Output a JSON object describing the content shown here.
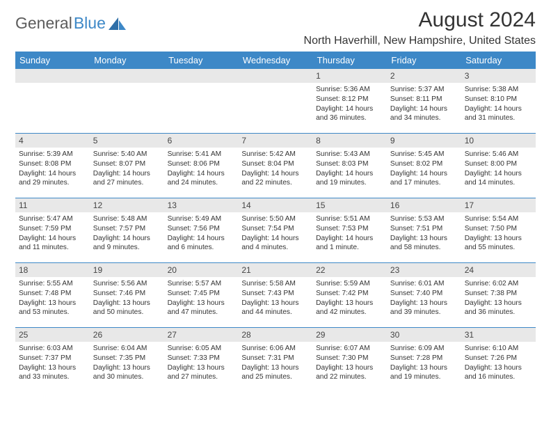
{
  "brand": {
    "part1": "General",
    "part2": "Blue"
  },
  "title": "August 2024",
  "location": "North Haverhill, New Hampshire, United States",
  "header_bg": "#3d88c7",
  "weekdays": [
    "Sunday",
    "Monday",
    "Tuesday",
    "Wednesday",
    "Thursday",
    "Friday",
    "Saturday"
  ],
  "colors": {
    "header_bg": "#3d88c7",
    "header_text": "#ffffff",
    "daynum_bg": "#e8e8e8",
    "rule": "#3d88c7",
    "body_text": "#333333"
  },
  "weeks": [
    [
      {
        "day": "",
        "lines": []
      },
      {
        "day": "",
        "lines": []
      },
      {
        "day": "",
        "lines": []
      },
      {
        "day": "",
        "lines": []
      },
      {
        "day": "1",
        "lines": [
          "Sunrise: 5:36 AM",
          "Sunset: 8:12 PM",
          "Daylight: 14 hours",
          "and 36 minutes."
        ]
      },
      {
        "day": "2",
        "lines": [
          "Sunrise: 5:37 AM",
          "Sunset: 8:11 PM",
          "Daylight: 14 hours",
          "and 34 minutes."
        ]
      },
      {
        "day": "3",
        "lines": [
          "Sunrise: 5:38 AM",
          "Sunset: 8:10 PM",
          "Daylight: 14 hours",
          "and 31 minutes."
        ]
      }
    ],
    [
      {
        "day": "4",
        "lines": [
          "Sunrise: 5:39 AM",
          "Sunset: 8:08 PM",
          "Daylight: 14 hours",
          "and 29 minutes."
        ]
      },
      {
        "day": "5",
        "lines": [
          "Sunrise: 5:40 AM",
          "Sunset: 8:07 PM",
          "Daylight: 14 hours",
          "and 27 minutes."
        ]
      },
      {
        "day": "6",
        "lines": [
          "Sunrise: 5:41 AM",
          "Sunset: 8:06 PM",
          "Daylight: 14 hours",
          "and 24 minutes."
        ]
      },
      {
        "day": "7",
        "lines": [
          "Sunrise: 5:42 AM",
          "Sunset: 8:04 PM",
          "Daylight: 14 hours",
          "and 22 minutes."
        ]
      },
      {
        "day": "8",
        "lines": [
          "Sunrise: 5:43 AM",
          "Sunset: 8:03 PM",
          "Daylight: 14 hours",
          "and 19 minutes."
        ]
      },
      {
        "day": "9",
        "lines": [
          "Sunrise: 5:45 AM",
          "Sunset: 8:02 PM",
          "Daylight: 14 hours",
          "and 17 minutes."
        ]
      },
      {
        "day": "10",
        "lines": [
          "Sunrise: 5:46 AM",
          "Sunset: 8:00 PM",
          "Daylight: 14 hours",
          "and 14 minutes."
        ]
      }
    ],
    [
      {
        "day": "11",
        "lines": [
          "Sunrise: 5:47 AM",
          "Sunset: 7:59 PM",
          "Daylight: 14 hours",
          "and 11 minutes."
        ]
      },
      {
        "day": "12",
        "lines": [
          "Sunrise: 5:48 AM",
          "Sunset: 7:57 PM",
          "Daylight: 14 hours",
          "and 9 minutes."
        ]
      },
      {
        "day": "13",
        "lines": [
          "Sunrise: 5:49 AM",
          "Sunset: 7:56 PM",
          "Daylight: 14 hours",
          "and 6 minutes."
        ]
      },
      {
        "day": "14",
        "lines": [
          "Sunrise: 5:50 AM",
          "Sunset: 7:54 PM",
          "Daylight: 14 hours",
          "and 4 minutes."
        ]
      },
      {
        "day": "15",
        "lines": [
          "Sunrise: 5:51 AM",
          "Sunset: 7:53 PM",
          "Daylight: 14 hours",
          "and 1 minute."
        ]
      },
      {
        "day": "16",
        "lines": [
          "Sunrise: 5:53 AM",
          "Sunset: 7:51 PM",
          "Daylight: 13 hours",
          "and 58 minutes."
        ]
      },
      {
        "day": "17",
        "lines": [
          "Sunrise: 5:54 AM",
          "Sunset: 7:50 PM",
          "Daylight: 13 hours",
          "and 55 minutes."
        ]
      }
    ],
    [
      {
        "day": "18",
        "lines": [
          "Sunrise: 5:55 AM",
          "Sunset: 7:48 PM",
          "Daylight: 13 hours",
          "and 53 minutes."
        ]
      },
      {
        "day": "19",
        "lines": [
          "Sunrise: 5:56 AM",
          "Sunset: 7:46 PM",
          "Daylight: 13 hours",
          "and 50 minutes."
        ]
      },
      {
        "day": "20",
        "lines": [
          "Sunrise: 5:57 AM",
          "Sunset: 7:45 PM",
          "Daylight: 13 hours",
          "and 47 minutes."
        ]
      },
      {
        "day": "21",
        "lines": [
          "Sunrise: 5:58 AM",
          "Sunset: 7:43 PM",
          "Daylight: 13 hours",
          "and 44 minutes."
        ]
      },
      {
        "day": "22",
        "lines": [
          "Sunrise: 5:59 AM",
          "Sunset: 7:42 PM",
          "Daylight: 13 hours",
          "and 42 minutes."
        ]
      },
      {
        "day": "23",
        "lines": [
          "Sunrise: 6:01 AM",
          "Sunset: 7:40 PM",
          "Daylight: 13 hours",
          "and 39 minutes."
        ]
      },
      {
        "day": "24",
        "lines": [
          "Sunrise: 6:02 AM",
          "Sunset: 7:38 PM",
          "Daylight: 13 hours",
          "and 36 minutes."
        ]
      }
    ],
    [
      {
        "day": "25",
        "lines": [
          "Sunrise: 6:03 AM",
          "Sunset: 7:37 PM",
          "Daylight: 13 hours",
          "and 33 minutes."
        ]
      },
      {
        "day": "26",
        "lines": [
          "Sunrise: 6:04 AM",
          "Sunset: 7:35 PM",
          "Daylight: 13 hours",
          "and 30 minutes."
        ]
      },
      {
        "day": "27",
        "lines": [
          "Sunrise: 6:05 AM",
          "Sunset: 7:33 PM",
          "Daylight: 13 hours",
          "and 27 minutes."
        ]
      },
      {
        "day": "28",
        "lines": [
          "Sunrise: 6:06 AM",
          "Sunset: 7:31 PM",
          "Daylight: 13 hours",
          "and 25 minutes."
        ]
      },
      {
        "day": "29",
        "lines": [
          "Sunrise: 6:07 AM",
          "Sunset: 7:30 PM",
          "Daylight: 13 hours",
          "and 22 minutes."
        ]
      },
      {
        "day": "30",
        "lines": [
          "Sunrise: 6:09 AM",
          "Sunset: 7:28 PM",
          "Daylight: 13 hours",
          "and 19 minutes."
        ]
      },
      {
        "day": "31",
        "lines": [
          "Sunrise: 6:10 AM",
          "Sunset: 7:26 PM",
          "Daylight: 13 hours",
          "and 16 minutes."
        ]
      }
    ]
  ]
}
